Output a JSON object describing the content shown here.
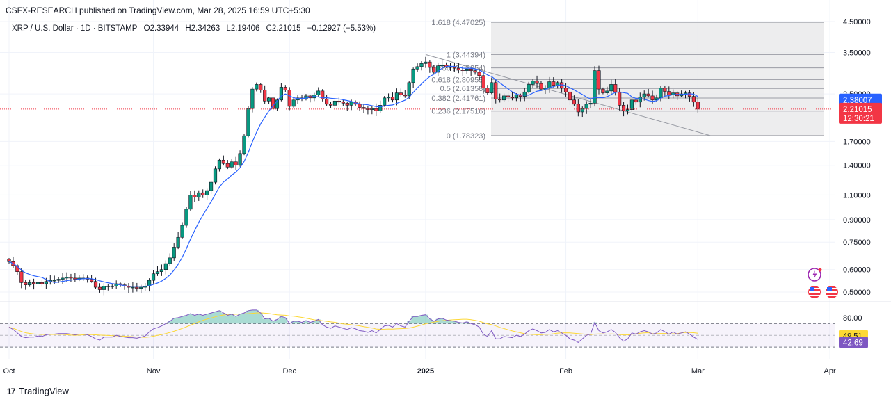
{
  "header": {
    "published": "CSFX-RESEARCH published on TradingView.com, Mar 28, 2025 16:59 UTC+5:30"
  },
  "legend": {
    "symbol": "XRP / U.S. Dollar · 1D · BITSTAMP",
    "open": "O2.33944",
    "high": "H2.34263",
    "low": "L2.19406",
    "close": "C2.21015",
    "change": "−0.12927 (−5.53%)"
  },
  "brand": {
    "name": "TradingView",
    "logo": "17"
  },
  "colors": {
    "up": "#089981",
    "down": "#f23645",
    "ma": "#2962ff",
    "rsi": "#7e57c2",
    "rsi_ma": "#fdd835",
    "fib": "#787b86"
  },
  "chart_data": {
    "type": "candlestick",
    "price_axis": {
      "scale": "log",
      "ticks": [
        "4.50000",
        "3.50000",
        "2.50000",
        "1.70000",
        "1.40000",
        "1.10000",
        "0.90000",
        "0.75000",
        "0.60000",
        "0.50000"
      ]
    },
    "time_axis": {
      "labels": [
        "Oct",
        "Nov",
        "Dec",
        "2025",
        "Feb",
        "Mar",
        "Apr"
      ]
    },
    "price_labels": {
      "ma_value": "2.38007",
      "last_price": "2.21015",
      "countdown": "12:30:21"
    },
    "fib_levels": [
      {
        "label": "1.618 (4.47025)",
        "value": 4.47025
      },
      {
        "label": "1 (3.44394)",
        "value": 3.44394
      },
      {
        "label": "0.786 (3.08854)",
        "value": 3.08854
      },
      {
        "label": "0.618 (2.80955)",
        "value": 2.80955
      },
      {
        "label": "0.5 (2.61358)",
        "value": 2.61358
      },
      {
        "label": "0.382 (2.41761)",
        "value": 2.41761
      },
      {
        "label": "0.236 (2.17516)",
        "value": 2.17516
      },
      {
        "label": "0 (1.78323)",
        "value": 1.78323
      }
    ],
    "closes": [
      0.64,
      0.62,
      0.59,
      0.54,
      0.53,
      0.54,
      0.535,
      0.54,
      0.535,
      0.545,
      0.55,
      0.55,
      0.555,
      0.56,
      0.565,
      0.56,
      0.555,
      0.56,
      0.56,
      0.555,
      0.545,
      0.52,
      0.51,
      0.525,
      0.525,
      0.525,
      0.535,
      0.53,
      0.525,
      0.52,
      0.52,
      0.515,
      0.52,
      0.525,
      0.55,
      0.58,
      0.59,
      0.6,
      0.63,
      0.66,
      0.72,
      0.78,
      0.86,
      0.98,
      1.1,
      1.08,
      1.12,
      1.1,
      1.14,
      1.22,
      1.36,
      1.46,
      1.42,
      1.38,
      1.44,
      1.4,
      1.54,
      1.78,
      2.22,
      2.6,
      2.7,
      2.58,
      2.36,
      2.42,
      2.22,
      2.38,
      2.64,
      2.58,
      2.26,
      2.38,
      2.42,
      2.4,
      2.46,
      2.42,
      2.48,
      2.56,
      2.4,
      2.3,
      2.28,
      2.36,
      2.34,
      2.32,
      2.28,
      2.34,
      2.3,
      2.24,
      2.22,
      2.2,
      2.22,
      2.18,
      2.28,
      2.42,
      2.44,
      2.38,
      2.52,
      2.48,
      2.46,
      2.74,
      3.06,
      3.12,
      3.2,
      3.24,
      3.1,
      2.98,
      3.14,
      3.16,
      3.12,
      3.1,
      3.08,
      3.04,
      3.02,
      3.06,
      3.02,
      2.98,
      2.9,
      2.62,
      2.52,
      2.74,
      2.4,
      2.38,
      2.46,
      2.44,
      2.42,
      2.48,
      2.45,
      2.54,
      2.7,
      2.78,
      2.72,
      2.6,
      2.62,
      2.76,
      2.68,
      2.74,
      2.62,
      2.54,
      2.38,
      2.3,
      2.16,
      2.22,
      2.3,
      2.32,
      3.02,
      2.6,
      2.52,
      2.56,
      2.7,
      2.54,
      2.28,
      2.18,
      2.2,
      2.38,
      2.34,
      2.44,
      2.5,
      2.46,
      2.38,
      2.42,
      2.62,
      2.55,
      2.48,
      2.52,
      2.46,
      2.5,
      2.52,
      2.45,
      2.34,
      2.21
    ]
  },
  "rsi_panel": {
    "ticks": [
      "80.00"
    ],
    "rsi_label": "42.69",
    "rsi_ma_label": "49.51",
    "rsi_values": [
      64,
      60,
      54,
      48,
      46,
      47,
      47,
      49,
      48,
      51,
      52,
      52,
      53,
      53,
      53,
      52,
      51,
      52,
      52,
      51,
      48,
      44,
      42,
      47,
      47,
      47,
      50,
      48,
      47,
      46,
      46,
      45,
      47,
      49,
      56,
      61,
      63,
      66,
      70,
      74,
      79,
      80,
      82,
      84,
      87,
      84,
      86,
      84,
      86,
      88,
      90,
      92,
      88,
      84,
      86,
      82,
      86,
      88,
      92,
      93,
      93,
      88,
      78,
      79,
      74,
      77,
      82,
      80,
      70,
      74,
      74,
      72,
      75,
      72,
      74,
      77,
      68,
      64,
      62,
      66,
      64,
      62,
      60,
      63,
      61,
      58,
      57,
      55,
      58,
      54,
      60,
      66,
      67,
      64,
      70,
      66,
      64,
      74,
      82,
      82,
      84,
      85,
      78,
      74,
      78,
      79,
      76,
      75,
      74,
      72,
      71,
      73,
      70,
      68,
      64,
      52,
      48,
      58,
      44,
      44,
      48,
      47,
      46,
      50,
      48,
      52,
      58,
      61,
      58,
      54,
      55,
      60,
      56,
      58,
      54,
      50,
      44,
      42,
      38,
      44,
      50,
      52,
      72,
      58,
      54,
      56,
      60,
      55,
      46,
      40,
      44,
      54,
      52,
      56,
      58,
      56,
      52,
      54,
      60,
      56,
      52,
      56,
      52,
      54,
      56,
      52,
      47,
      43
    ]
  }
}
